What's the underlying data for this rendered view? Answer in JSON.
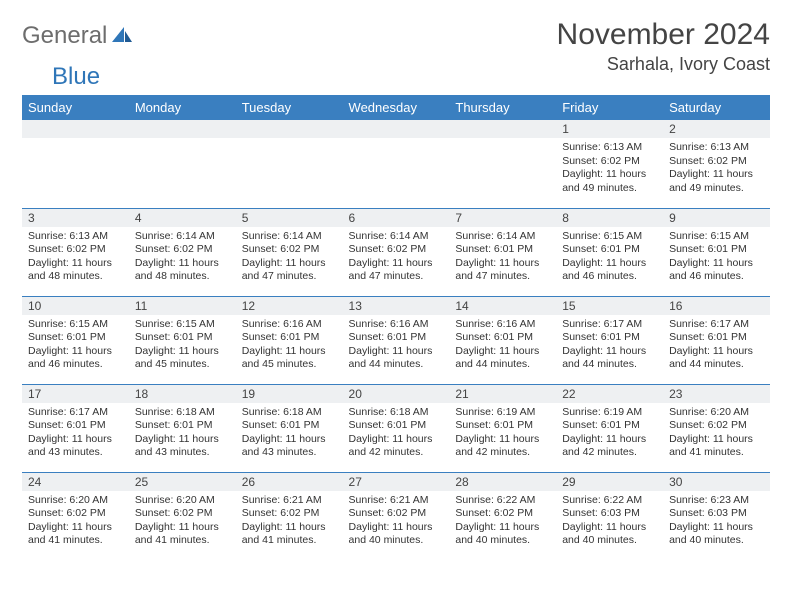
{
  "logo": {
    "word1": "General",
    "word2": "Blue"
  },
  "title": "November 2024",
  "location": "Sarhala, Ivory Coast",
  "colors": {
    "header_bg": "#3a7fc0",
    "header_text": "#ffffff",
    "daynum_bg": "#eef0f2",
    "row_border": "#3a7fc0",
    "body_text": "#333333",
    "logo_gray": "#6d6d6d",
    "logo_blue": "#2f76b8"
  },
  "weekdays": [
    "Sunday",
    "Monday",
    "Tuesday",
    "Wednesday",
    "Thursday",
    "Friday",
    "Saturday"
  ],
  "weeks": [
    [
      {
        "n": "",
        "sr": "",
        "ss": "",
        "dl": ""
      },
      {
        "n": "",
        "sr": "",
        "ss": "",
        "dl": ""
      },
      {
        "n": "",
        "sr": "",
        "ss": "",
        "dl": ""
      },
      {
        "n": "",
        "sr": "",
        "ss": "",
        "dl": ""
      },
      {
        "n": "",
        "sr": "",
        "ss": "",
        "dl": ""
      },
      {
        "n": "1",
        "sr": "Sunrise: 6:13 AM",
        "ss": "Sunset: 6:02 PM",
        "dl": "Daylight: 11 hours and 49 minutes."
      },
      {
        "n": "2",
        "sr": "Sunrise: 6:13 AM",
        "ss": "Sunset: 6:02 PM",
        "dl": "Daylight: 11 hours and 49 minutes."
      }
    ],
    [
      {
        "n": "3",
        "sr": "Sunrise: 6:13 AM",
        "ss": "Sunset: 6:02 PM",
        "dl": "Daylight: 11 hours and 48 minutes."
      },
      {
        "n": "4",
        "sr": "Sunrise: 6:14 AM",
        "ss": "Sunset: 6:02 PM",
        "dl": "Daylight: 11 hours and 48 minutes."
      },
      {
        "n": "5",
        "sr": "Sunrise: 6:14 AM",
        "ss": "Sunset: 6:02 PM",
        "dl": "Daylight: 11 hours and 47 minutes."
      },
      {
        "n": "6",
        "sr": "Sunrise: 6:14 AM",
        "ss": "Sunset: 6:02 PM",
        "dl": "Daylight: 11 hours and 47 minutes."
      },
      {
        "n": "7",
        "sr": "Sunrise: 6:14 AM",
        "ss": "Sunset: 6:01 PM",
        "dl": "Daylight: 11 hours and 47 minutes."
      },
      {
        "n": "8",
        "sr": "Sunrise: 6:15 AM",
        "ss": "Sunset: 6:01 PM",
        "dl": "Daylight: 11 hours and 46 minutes."
      },
      {
        "n": "9",
        "sr": "Sunrise: 6:15 AM",
        "ss": "Sunset: 6:01 PM",
        "dl": "Daylight: 11 hours and 46 minutes."
      }
    ],
    [
      {
        "n": "10",
        "sr": "Sunrise: 6:15 AM",
        "ss": "Sunset: 6:01 PM",
        "dl": "Daylight: 11 hours and 46 minutes."
      },
      {
        "n": "11",
        "sr": "Sunrise: 6:15 AM",
        "ss": "Sunset: 6:01 PM",
        "dl": "Daylight: 11 hours and 45 minutes."
      },
      {
        "n": "12",
        "sr": "Sunrise: 6:16 AM",
        "ss": "Sunset: 6:01 PM",
        "dl": "Daylight: 11 hours and 45 minutes."
      },
      {
        "n": "13",
        "sr": "Sunrise: 6:16 AM",
        "ss": "Sunset: 6:01 PM",
        "dl": "Daylight: 11 hours and 44 minutes."
      },
      {
        "n": "14",
        "sr": "Sunrise: 6:16 AM",
        "ss": "Sunset: 6:01 PM",
        "dl": "Daylight: 11 hours and 44 minutes."
      },
      {
        "n": "15",
        "sr": "Sunrise: 6:17 AM",
        "ss": "Sunset: 6:01 PM",
        "dl": "Daylight: 11 hours and 44 minutes."
      },
      {
        "n": "16",
        "sr": "Sunrise: 6:17 AM",
        "ss": "Sunset: 6:01 PM",
        "dl": "Daylight: 11 hours and 44 minutes."
      }
    ],
    [
      {
        "n": "17",
        "sr": "Sunrise: 6:17 AM",
        "ss": "Sunset: 6:01 PM",
        "dl": "Daylight: 11 hours and 43 minutes."
      },
      {
        "n": "18",
        "sr": "Sunrise: 6:18 AM",
        "ss": "Sunset: 6:01 PM",
        "dl": "Daylight: 11 hours and 43 minutes."
      },
      {
        "n": "19",
        "sr": "Sunrise: 6:18 AM",
        "ss": "Sunset: 6:01 PM",
        "dl": "Daylight: 11 hours and 43 minutes."
      },
      {
        "n": "20",
        "sr": "Sunrise: 6:18 AM",
        "ss": "Sunset: 6:01 PM",
        "dl": "Daylight: 11 hours and 42 minutes."
      },
      {
        "n": "21",
        "sr": "Sunrise: 6:19 AM",
        "ss": "Sunset: 6:01 PM",
        "dl": "Daylight: 11 hours and 42 minutes."
      },
      {
        "n": "22",
        "sr": "Sunrise: 6:19 AM",
        "ss": "Sunset: 6:01 PM",
        "dl": "Daylight: 11 hours and 42 minutes."
      },
      {
        "n": "23",
        "sr": "Sunrise: 6:20 AM",
        "ss": "Sunset: 6:02 PM",
        "dl": "Daylight: 11 hours and 41 minutes."
      }
    ],
    [
      {
        "n": "24",
        "sr": "Sunrise: 6:20 AM",
        "ss": "Sunset: 6:02 PM",
        "dl": "Daylight: 11 hours and 41 minutes."
      },
      {
        "n": "25",
        "sr": "Sunrise: 6:20 AM",
        "ss": "Sunset: 6:02 PM",
        "dl": "Daylight: 11 hours and 41 minutes."
      },
      {
        "n": "26",
        "sr": "Sunrise: 6:21 AM",
        "ss": "Sunset: 6:02 PM",
        "dl": "Daylight: 11 hours and 41 minutes."
      },
      {
        "n": "27",
        "sr": "Sunrise: 6:21 AM",
        "ss": "Sunset: 6:02 PM",
        "dl": "Daylight: 11 hours and 40 minutes."
      },
      {
        "n": "28",
        "sr": "Sunrise: 6:22 AM",
        "ss": "Sunset: 6:02 PM",
        "dl": "Daylight: 11 hours and 40 minutes."
      },
      {
        "n": "29",
        "sr": "Sunrise: 6:22 AM",
        "ss": "Sunset: 6:03 PM",
        "dl": "Daylight: 11 hours and 40 minutes."
      },
      {
        "n": "30",
        "sr": "Sunrise: 6:23 AM",
        "ss": "Sunset: 6:03 PM",
        "dl": "Daylight: 11 hours and 40 minutes."
      }
    ]
  ]
}
